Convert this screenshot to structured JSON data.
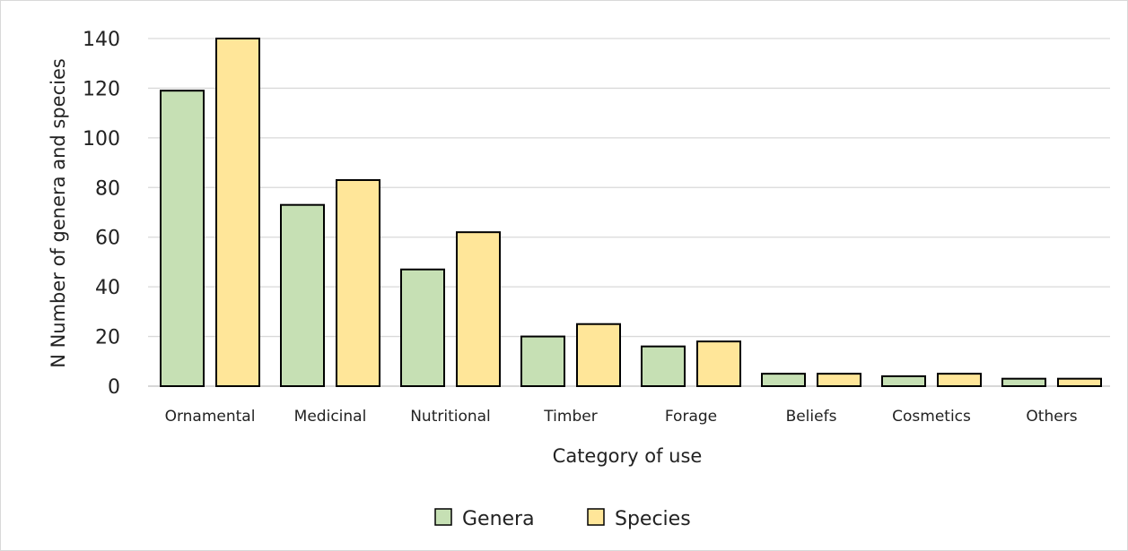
{
  "chart_data": {
    "type": "bar",
    "categories": [
      "Ornamental",
      "Medicinal",
      "Nutritional",
      "Timber",
      "Forage",
      "Beliefs",
      "Cosmetics",
      "Others"
    ],
    "series": [
      {
        "name": "Genera",
        "values": [
          119,
          73,
          47,
          20,
          16,
          5,
          4,
          3
        ],
        "color": "#c6e0b4"
      },
      {
        "name": "Species",
        "values": [
          140,
          83,
          62,
          25,
          18,
          5,
          5,
          3
        ],
        "color": "#ffe699"
      }
    ],
    "title": "",
    "xlabel": "Category of use",
    "ylabel": "N Number of genera and species",
    "ylim": [
      0,
      140
    ],
    "yticks": [
      0,
      20,
      40,
      60,
      80,
      100,
      120,
      140
    ],
    "grid": true,
    "legend_position": "bottom"
  }
}
